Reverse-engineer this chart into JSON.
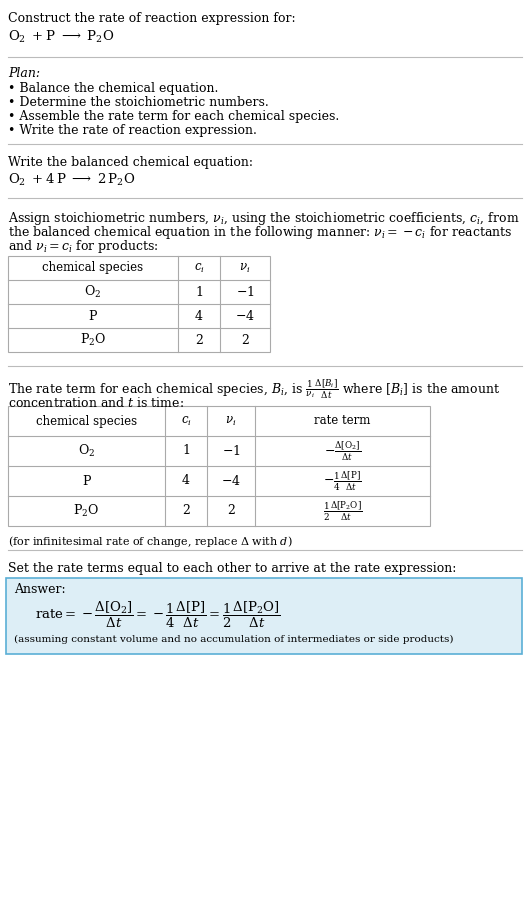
{
  "title_text": "Construct the rate of reaction expression for:",
  "plan_header": "Plan:",
  "plan_items": [
    "• Balance the chemical equation.",
    "• Determine the stoichiometric numbers.",
    "• Assemble the rate term for each chemical species.",
    "• Write the rate of reaction expression."
  ],
  "balanced_header": "Write the balanced chemical equation:",
  "stoich_lines": [
    "Assign stoichiometric numbers, $\\nu_i$, using the stoichiometric coefficients, $c_i$, from",
    "the balanced chemical equation in the following manner: $\\nu_i = -c_i$ for reactants",
    "and $\\nu_i = c_i$ for products:"
  ],
  "rate_line1": "The rate term for each chemical species, $B_i$, is $\\frac{1}{\\nu_i}\\frac{\\Delta[B_i]}{\\Delta t}$ where $[B_i]$ is the amount",
  "rate_line2": "concentration and $t$ is time:",
  "infinitesimal_note": "(for infinitesimal rate of change, replace $\\Delta$ with $d$)",
  "set_equal_text": "Set the rate terms equal to each other to arrive at the rate expression:",
  "answer_label": "Answer:",
  "answer_note": "(assuming constant volume and no accumulation of intermediates or side products)",
  "answer_box_color": "#ddeef6",
  "answer_box_border": "#5bafd6",
  "bg_color": "#ffffff",
  "text_color": "#000000",
  "font_size": 9.0,
  "table_line_color": "#aaaaaa"
}
